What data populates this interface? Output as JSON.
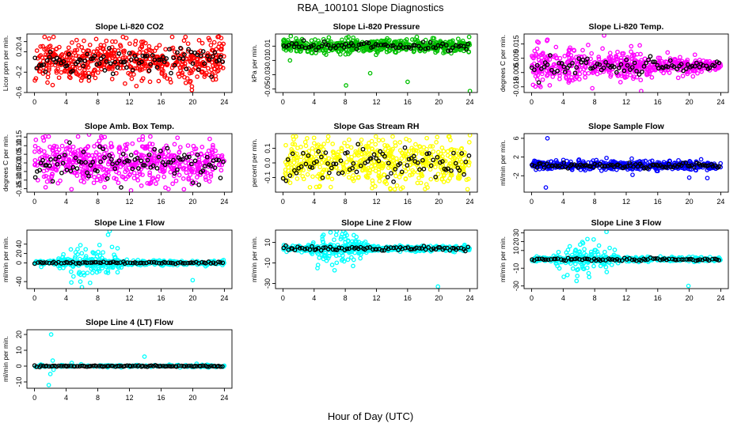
{
  "title": "RBA_100101  Slope Diagnostics",
  "xlabel": "Hour of Day (UTC)",
  "colors": {
    "red": "#ff0000",
    "green": "#00c000",
    "magenta": "#ff00ff",
    "yellow": "#ffff00",
    "blue": "#0000ff",
    "cyan": "#00ffff",
    "overlay": "#000000"
  },
  "chart_data": [
    {
      "type": "scatter",
      "title": "Slope Li-820 CO2",
      "ylabel": "Licor ppm per min.",
      "color": "red",
      "xlim": [
        -0.96,
        24.96
      ],
      "xticks": [
        0,
        4,
        8,
        12,
        16,
        20,
        24
      ],
      "ylim": [
        -0.6,
        0.55
      ],
      "yticks": [
        -0.6,
        -0.2,
        0.2,
        0.4
      ],
      "ytick_labels": [
        "-0.6",
        "-0.2",
        "0.2",
        "0.4"
      ],
      "n": 560,
      "n_overlay": 95,
      "spread": 0.19,
      "center": 0.02,
      "overlay_spread": 0.12,
      "outliers": [
        [
          19.9,
          -0.55
        ],
        [
          19.9,
          -0.48
        ],
        [
          23.3,
          0.5
        ],
        [
          23.6,
          0.47
        ],
        [
          7.8,
          0.45
        ]
      ]
    },
    {
      "type": "scatter",
      "title": "Slope Li-820 Pressure",
      "ylabel": "kPa per min.",
      "color": "green",
      "xlim": [
        -0.96,
        24.96
      ],
      "xticks": [
        0,
        4,
        8,
        12,
        16,
        20,
        24
      ],
      "ylim": [
        -0.055,
        0.027
      ],
      "yticks": [
        -0.05,
        -0.03,
        -0.01,
        0.01
      ],
      "ytick_labels": [
        "-0.05",
        "-0.03",
        "-0.01",
        "0.01"
      ],
      "n": 520,
      "n_overlay": 75,
      "spread": 0.0045,
      "center": 0.01,
      "overlay_spread": 0.003,
      "outliers": [
        [
          8.1,
          -0.045
        ],
        [
          16.0,
          -0.04
        ],
        [
          11.2,
          -0.028
        ],
        [
          0.9,
          -0.01
        ],
        [
          24.0,
          -0.053
        ],
        [
          1.0,
          0.024
        ]
      ]
    },
    {
      "type": "scatter",
      "title": "Slope Li-820 Temp.",
      "ylabel": "degrees C per min.",
      "color": "magenta",
      "xlim": [
        -0.96,
        24.96
      ],
      "xticks": [
        0,
        4,
        8,
        12,
        16,
        20,
        24
      ],
      "ylim": [
        -0.019,
        0.022
      ],
      "yticks": [
        -0.015,
        -0.005,
        0.005,
        0.015
      ],
      "ytick_labels": [
        "-0.015",
        "-0.005",
        "0.005",
        "0.015"
      ],
      "n": 540,
      "n_overlay": 85,
      "spread": 0.0055,
      "center": 0.0,
      "overlay_spread": 0.003,
      "outliers": [
        [
          9.2,
          0.021
        ],
        [
          7.7,
          -0.016
        ],
        [
          13.9,
          -0.018
        ],
        [
          2.0,
          0.018
        ]
      ],
      "taper": true
    },
    {
      "type": "scatter",
      "title": "Slope Amb. Box Temp.",
      "ylabel": "degrees C per min.",
      "color": "magenta",
      "xlim": [
        -0.96,
        24.96
      ],
      "xticks": [
        0,
        4,
        8,
        12,
        16,
        20,
        24
      ],
      "ylim": [
        -0.17,
        0.17
      ],
      "yticks": [
        -0.15,
        -0.1,
        -0.05,
        0.0,
        0.05,
        0.1,
        0.15
      ],
      "ytick_labels": [
        "-0.15",
        "-0.10",
        "-0.05",
        "0.00",
        "0.05",
        "0.10",
        "0.15"
      ],
      "n": 560,
      "n_overlay": 95,
      "spread": 0.065,
      "center": 0.0,
      "overlay_spread": 0.05,
      "outliers": [
        [
          6.9,
          0.165
        ],
        [
          12.2,
          -0.16
        ]
      ]
    },
    {
      "type": "scatter",
      "title": "Slope Gas Stream RH",
      "ylabel": "percent per min.",
      "color": "yellow",
      "xlim": [
        -0.96,
        24.96
      ],
      "xticks": [
        0,
        4,
        8,
        12,
        16,
        20,
        24
      ],
      "ylim": [
        -0.2,
        0.2
      ],
      "yticks": [
        -0.1,
        0.0,
        0.1
      ],
      "ytick_labels": [
        "-0.1",
        "0.0",
        "0.1"
      ],
      "n": 560,
      "n_overlay": 85,
      "spread": 0.075,
      "center": 0.0,
      "overlay_spread": 0.05,
      "outliers": [
        [
          24.0,
          0.19
        ],
        [
          23.7,
          -0.18
        ]
      ]
    },
    {
      "type": "scatter",
      "title": "Slope Sample Flow",
      "ylabel": "ml/min per min.",
      "color": "blue",
      "xlim": [
        -0.96,
        24.96
      ],
      "xticks": [
        0,
        4,
        8,
        12,
        16,
        20,
        24
      ],
      "ylim": [
        -5.5,
        7
      ],
      "yticks": [
        -2,
        2,
        6
      ],
      "ytick_labels": [
        "-2",
        "2",
        "6"
      ],
      "n": 480,
      "n_overlay": 90,
      "spread": 0.45,
      "center": 0.2,
      "overlay_spread": 0.3,
      "outliers": [
        [
          2.0,
          6.0
        ],
        [
          1.8,
          -4.5
        ],
        [
          9.5,
          1.8
        ],
        [
          20.0,
          -2.4
        ],
        [
          22.3,
          -2.5
        ],
        [
          12.8,
          -1.8
        ]
      ]
    },
    {
      "type": "scatter",
      "title": "Slope Line 1 Flow",
      "ylabel": "ml/min per min.",
      "color": "cyan",
      "xlim": [
        -0.96,
        24.96
      ],
      "xticks": [
        0,
        4,
        8,
        12,
        16,
        20,
        24
      ],
      "ylim": [
        -55,
        70
      ],
      "yticks": [
        -40,
        0,
        20,
        40
      ],
      "ytick_labels": [
        "-40",
        "0",
        "20",
        "40"
      ],
      "n": 380,
      "n_overlay": 80,
      "spread": 2.5,
      "center": 0.0,
      "overlay_spread": 1.2,
      "burst": [
        3,
        11,
        14
      ],
      "burst_n": 110,
      "outliers": [
        [
          9.5,
          68
        ],
        [
          9.3,
          60
        ],
        [
          6.0,
          -52
        ],
        [
          5.8,
          -40
        ],
        [
          20.0,
          -37
        ],
        [
          10.5,
          -20
        ],
        [
          9.8,
          34
        ]
      ]
    },
    {
      "type": "scatter",
      "title": "Slope Line 2 Flow",
      "ylabel": "ml/min per min.",
      "color": "cyan",
      "xlim": [
        -0.96,
        24.96
      ],
      "xticks": [
        0,
        4,
        8,
        12,
        16,
        20,
        24
      ],
      "ylim": [
        -35,
        22
      ],
      "yticks": [
        -30,
        -10,
        10
      ],
      "ytick_labels": [
        "-30",
        "-10",
        "10"
      ],
      "n": 380,
      "n_overlay": 80,
      "spread": 1.3,
      "center": 4.0,
      "overlay_spread": 1.0,
      "burst": [
        3,
        11,
        6.5
      ],
      "burst_n": 130,
      "outliers": [
        [
          6.9,
          21
        ],
        [
          19.9,
          -33
        ],
        [
          4.5,
          -12
        ],
        [
          9.0,
          -13
        ],
        [
          8.2,
          17
        ]
      ]
    },
    {
      "type": "scatter",
      "title": "Slope Line 3 Flow",
      "ylabel": "ml/min per min.",
      "color": "cyan",
      "xlim": [
        -0.96,
        24.96
      ],
      "xticks": [
        0,
        4,
        8,
        12,
        16,
        20,
        24
      ],
      "ylim": [
        -33,
        33
      ],
      "yticks": [
        -30,
        -10,
        10,
        20,
        30
      ],
      "ytick_labels": [
        "-30",
        "-10",
        "10",
        "20",
        "30"
      ],
      "n": 380,
      "n_overlay": 80,
      "spread": 1.2,
      "center": 0.0,
      "overlay_spread": 0.8,
      "burst": [
        3,
        11,
        7.5
      ],
      "burst_n": 120,
      "outliers": [
        [
          9.5,
          31
        ],
        [
          19.9,
          -30
        ],
        [
          7.3,
          -20
        ],
        [
          2.8,
          4
        ]
      ]
    },
    {
      "type": "scatter",
      "title": "Slope Line 4 (LT) Flow",
      "ylabel": "ml/min per min.",
      "color": "cyan",
      "xlim": [
        -0.96,
        24.96
      ],
      "xticks": [
        0,
        4,
        8,
        12,
        16,
        20,
        24
      ],
      "ylim": [
        -14,
        23
      ],
      "yticks": [
        -10,
        0,
        10,
        20
      ],
      "ytick_labels": [
        "-10",
        "0",
        "10",
        "20"
      ],
      "n": 150,
      "n_overlay": 95,
      "spread": 0.35,
      "center": 0.0,
      "overlay_spread": 0.2,
      "outliers": [
        [
          2.1,
          20
        ],
        [
          1.8,
          -12
        ],
        [
          2.0,
          -5
        ],
        [
          13.9,
          6
        ],
        [
          4.7,
          2
        ],
        [
          5.9,
          1.2
        ],
        [
          20.5,
          1.5
        ],
        [
          0.8,
          1.0
        ],
        [
          2.4,
          -2.3
        ],
        [
          2.3,
          3.5
        ],
        [
          12.4,
          0.3
        ]
      ]
    }
  ]
}
